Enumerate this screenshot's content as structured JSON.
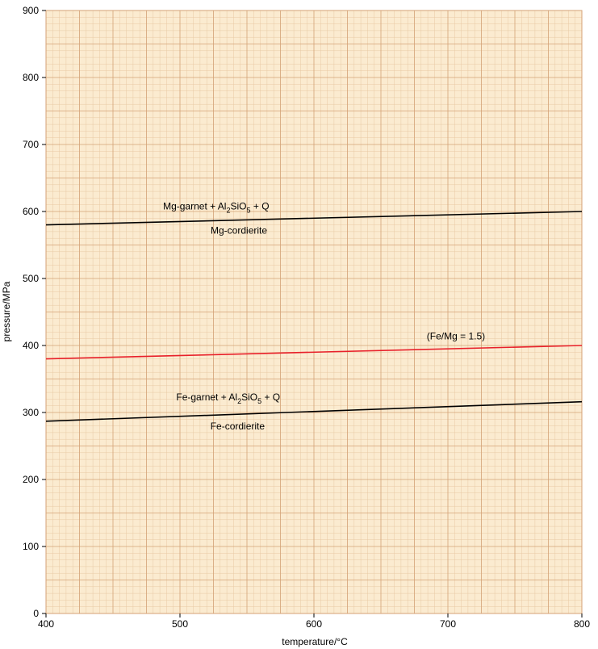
{
  "chart_data": {
    "type": "line",
    "xlabel": "temperature/°C",
    "ylabel": "pressure/MPa",
    "xlim": [
      400,
      800
    ],
    "ylim": [
      0,
      900
    ],
    "xticks": [
      "400",
      "500",
      "600",
      "700",
      "800"
    ],
    "yticks": [
      "0",
      "100",
      "200",
      "300",
      "400",
      "500",
      "600",
      "700",
      "800",
      "900"
    ],
    "grid": true,
    "colors": {
      "background": "#fbebd0",
      "grid_minor": "#e8c9a4",
      "grid_major": "#d4a276",
      "red_line": "#e8202a",
      "black_line": "#000000"
    },
    "series": [
      {
        "x": [
          400,
          800
        ],
        "y": [
          580,
          600
        ],
        "color": "#000000"
      },
      {
        "x": [
          400,
          800
        ],
        "y": [
          380,
          400
        ],
        "color": "#e8202a"
      },
      {
        "x": [
          400,
          800
        ],
        "y": [
          287,
          316
        ],
        "color": "#000000"
      }
    ],
    "annotations": {
      "mg_garnet": {
        "pre": "Mg-garnet + Al",
        "sub1": "2",
        "mid": "SiO",
        "sub2": "5",
        "post": " + Q",
        "x": 527,
        "y": 603
      },
      "mg_cordierite": {
        "text": "Mg-cordierite",
        "x": 544,
        "y": 567
      },
      "fe_mg": {
        "text": "(Fe/Mg = 1.5)",
        "x": 706,
        "y": 409,
        "color": "#e8202a"
      },
      "fe_garnet": {
        "pre": "Fe-garnet + Al",
        "sub1": "2",
        "mid": "SiO",
        "sub2": "5",
        "post": " + Q",
        "x": 536,
        "y": 318
      },
      "fe_cordierite": {
        "text": "Fe-cordierite",
        "x": 543,
        "y": 275
      }
    }
  }
}
